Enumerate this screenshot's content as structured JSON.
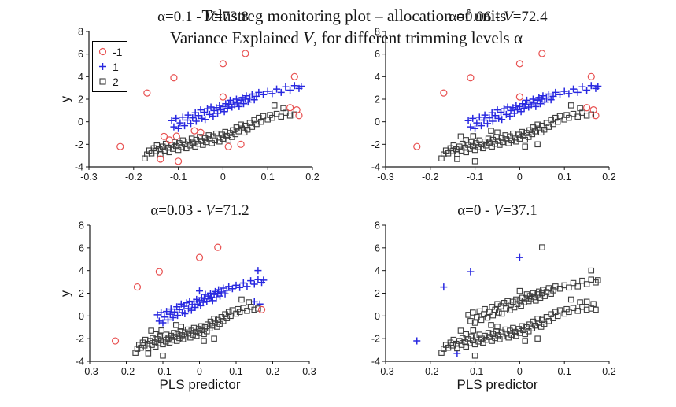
{
  "figure": {
    "title_line1": "Tclustreg monitoring plot – allocation of units",
    "title_line2_parts": [
      "Variance Explained ",
      "V",
      ", for different trimming levels α"
    ]
  },
  "colors": {
    "red": "#e85050",
    "blue": "#2828e0",
    "black": "#3c3c3c",
    "axis": "#1a1a1a"
  },
  "axes": {
    "ylabel": "y",
    "xlabel": "PLS predictor"
  },
  "legend": {
    "items": [
      {
        "label": "-1",
        "marker": "circle",
        "colorKey": "red"
      },
      {
        "label": "1",
        "marker": "plus",
        "colorKey": "blue"
      },
      {
        "label": "2",
        "marker": "square",
        "colorKey": "black"
      }
    ]
  },
  "chart_data": {
    "type": "scatter",
    "points": {
      "band1": [
        [
          -0.115,
          0.1
        ],
        [
          -0.11,
          -0.45
        ],
        [
          -0.105,
          0.3
        ],
        [
          -0.1,
          -0.6
        ],
        [
          -0.096,
          -0.1
        ],
        [
          -0.09,
          0.4
        ],
        [
          -0.086,
          -0.35
        ],
        [
          -0.08,
          0.15
        ],
        [
          -0.078,
          0.6
        ],
        [
          -0.072,
          -0.15
        ],
        [
          -0.068,
          0.35
        ],
        [
          -0.062,
          0.8
        ],
        [
          -0.06,
          0.05
        ],
        [
          -0.055,
          0.55
        ],
        [
          -0.05,
          1.05
        ],
        [
          -0.047,
          0.3
        ],
        [
          -0.042,
          0.85
        ],
        [
          -0.04,
          0.2
        ],
        [
          -0.035,
          1.15
        ],
        [
          -0.03,
          0.65
        ],
        [
          -0.027,
          1.3
        ],
        [
          -0.022,
          0.5
        ],
        [
          -0.02,
          1.0
        ],
        [
          -0.015,
          1.25
        ],
        [
          -0.012,
          0.75
        ],
        [
          -0.008,
          1.45
        ],
        [
          -0.005,
          1.05
        ],
        [
          0.0,
          1.35
        ],
        [
          0.003,
          0.9
        ],
        [
          0.006,
          1.6
        ],
        [
          0.01,
          1.2
        ],
        [
          0.013,
          1.55
        ],
        [
          0.016,
          1.9
        ],
        [
          0.02,
          1.3
        ],
        [
          0.023,
          1.75
        ],
        [
          0.026,
          1.5
        ],
        [
          0.03,
          2.0
        ],
        [
          0.032,
          1.65
        ],
        [
          0.036,
          1.35
        ],
        [
          0.04,
          1.9
        ],
        [
          0.043,
          2.15
        ],
        [
          0.046,
          1.6
        ],
        [
          0.05,
          2.0
        ],
        [
          0.052,
          2.3
        ],
        [
          0.056,
          1.75
        ],
        [
          0.06,
          2.1
        ],
        [
          0.065,
          2.45
        ],
        [
          0.07,
          1.95
        ],
        [
          0.075,
          2.25
        ],
        [
          0.08,
          2.6
        ],
        [
          0.09,
          2.4
        ],
        [
          0.1,
          2.7
        ],
        [
          0.11,
          2.5
        ],
        [
          0.12,
          2.9
        ],
        [
          0.13,
          2.6
        ],
        [
          0.14,
          3.1
        ],
        [
          0.15,
          2.8
        ],
        [
          0.16,
          3.2
        ],
        [
          0.17,
          2.95
        ],
        [
          0.175,
          3.15
        ]
      ],
      "band2": [
        [
          -0.175,
          -3.25
        ],
        [
          -0.17,
          -2.9
        ],
        [
          -0.165,
          -2.55
        ],
        [
          -0.16,
          -2.8
        ],
        [
          -0.155,
          -2.35
        ],
        [
          -0.15,
          -2.6
        ],
        [
          -0.148,
          -2.1
        ],
        [
          -0.142,
          -2.45
        ],
        [
          -0.14,
          -2.85
        ],
        [
          -0.135,
          -2.2
        ],
        [
          -0.13,
          -2.55
        ],
        [
          -0.128,
          -1.95
        ],
        [
          -0.122,
          -2.3
        ],
        [
          -0.12,
          -2.7
        ],
        [
          -0.115,
          -2.05
        ],
        [
          -0.112,
          -2.4
        ],
        [
          -0.108,
          -1.8
        ],
        [
          -0.105,
          -2.15
        ],
        [
          -0.1,
          -2.5
        ],
        [
          -0.098,
          -1.9
        ],
        [
          -0.092,
          -2.25
        ],
        [
          -0.09,
          -1.65
        ],
        [
          -0.085,
          -2.0
        ],
        [
          -0.082,
          -2.35
        ],
        [
          -0.078,
          -1.75
        ],
        [
          -0.075,
          -2.1
        ],
        [
          -0.07,
          -1.5
        ],
        [
          -0.068,
          -1.85
        ],
        [
          -0.062,
          -2.2
        ],
        [
          -0.06,
          -1.6
        ],
        [
          -0.055,
          -1.95
        ],
        [
          -0.052,
          -1.35
        ],
        [
          -0.048,
          -1.7
        ],
        [
          -0.045,
          -2.05
        ],
        [
          -0.04,
          -1.45
        ],
        [
          -0.038,
          -1.8
        ],
        [
          -0.032,
          -1.2
        ],
        [
          -0.03,
          -1.55
        ],
        [
          -0.025,
          -1.9
        ],
        [
          -0.022,
          -1.3
        ],
        [
          -0.018,
          -1.65
        ],
        [
          -0.015,
          -1.05
        ],
        [
          -0.01,
          -1.4
        ],
        [
          -0.008,
          -1.75
        ],
        [
          -0.002,
          -1.15
        ],
        [
          0.0,
          -1.5
        ],
        [
          0.005,
          -0.9
        ],
        [
          0.008,
          -1.25
        ],
        [
          0.012,
          -1.6
        ],
        [
          0.015,
          -1.0
        ],
        [
          0.02,
          -1.35
        ],
        [
          0.022,
          -0.75
        ],
        [
          0.028,
          -1.1
        ],
        [
          0.03,
          -0.5
        ],
        [
          0.035,
          -0.85
        ],
        [
          0.04,
          -0.25
        ],
        [
          0.042,
          -0.6
        ],
        [
          0.048,
          -0.95
        ],
        [
          0.05,
          -0.35
        ],
        [
          0.055,
          -0.7
        ],
        [
          0.06,
          -0.1
        ],
        [
          0.065,
          -0.45
        ],
        [
          0.07,
          0.15
        ],
        [
          0.075,
          -0.2
        ],
        [
          0.08,
          0.35
        ],
        [
          0.085,
          0.0
        ],
        [
          0.09,
          0.5
        ],
        [
          0.1,
          0.2
        ],
        [
          0.105,
          0.6
        ],
        [
          0.11,
          0.35
        ],
        [
          0.12,
          0.7
        ],
        [
          0.13,
          0.45
        ],
        [
          0.14,
          0.8
        ],
        [
          0.15,
          0.55
        ],
        [
          0.16,
          0.65
        ],
        [
          0.115,
          1.45
        ],
        [
          0.135,
          1.2
        ]
      ],
      "outliers": [
        [
          0.05,
          6.05
        ],
        [
          0.0,
          5.15
        ],
        [
          -0.11,
          3.9
        ],
        [
          0.16,
          4.0
        ],
        [
          -0.17,
          2.55
        ],
        [
          0.0,
          2.2
        ],
        [
          0.15,
          1.25
        ],
        [
          0.165,
          1.05
        ],
        [
          0.17,
          0.55
        ],
        [
          -0.23,
          -2.2
        ],
        [
          -0.14,
          -3.3
        ],
        [
          0.04,
          -2.0
        ]
      ],
      "border": [
        [
          -0.132,
          -1.3
        ],
        [
          -0.12,
          -1.62
        ],
        [
          -0.104,
          -1.28
        ],
        [
          -0.064,
          -0.8
        ],
        [
          -0.05,
          -0.95
        ],
        [
          0.012,
          -2.2
        ],
        [
          -0.1,
          -3.5
        ]
      ]
    },
    "panels": [
      {
        "title_parts": [
          "α=0.1 - ",
          "V",
          "=73.8"
        ],
        "xlim": [
          -0.3,
          0.2
        ],
        "ylim": [
          -4,
          8
        ],
        "xticks": [
          -0.3,
          -0.2,
          -0.1,
          0,
          0.1,
          0.2
        ],
        "yticks": [
          8,
          6,
          4,
          2,
          0,
          -2,
          -4
        ],
        "series": [
          {
            "name": "-1",
            "marker": "circle",
            "colorKey": "red",
            "refs": [
              {
                "set": "outliers",
                "idx": "all"
              },
              {
                "set": "border",
                "idx": "all"
              }
            ]
          },
          {
            "name": "1",
            "marker": "plus",
            "colorKey": "blue",
            "refs": [
              {
                "set": "band1",
                "idx": "all"
              }
            ]
          },
          {
            "name": "2",
            "marker": "square",
            "colorKey": "black",
            "refs": [
              {
                "set": "band2",
                "idx": "all"
              }
            ]
          }
        ]
      },
      {
        "title_parts": [
          "α=0.06 - ",
          "V",
          "=72.4"
        ],
        "xlim": [
          -0.3,
          0.2
        ],
        "ylim": [
          -4,
          8
        ],
        "xticks": [
          -0.3,
          -0.2,
          -0.1,
          0,
          0.1,
          0.2
        ],
        "yticks": [
          8,
          6,
          4,
          2,
          0,
          -2,
          -4
        ],
        "series": [
          {
            "name": "-1",
            "marker": "circle",
            "colorKey": "red",
            "refs": [
              {
                "set": "outliers",
                "idx": [
                  0,
                  1,
                  2,
                  3,
                  4,
                  5,
                  6,
                  7,
                  8,
                  9
                ]
              }
            ]
          },
          {
            "name": "1",
            "marker": "plus",
            "colorKey": "blue",
            "refs": [
              {
                "set": "band1",
                "idx": "all"
              }
            ]
          },
          {
            "name": "2",
            "marker": "square",
            "colorKey": "black",
            "refs": [
              {
                "set": "band2",
                "idx": "all"
              },
              {
                "set": "outliers",
                "idx": [
                  10,
                  11
                ]
              },
              {
                "set": "border",
                "idx": "all"
              }
            ]
          }
        ]
      },
      {
        "title_parts": [
          "α=0.03 - ",
          "V",
          "=71.2"
        ],
        "xlim": [
          -0.3,
          0.3
        ],
        "ylim": [
          -4,
          8
        ],
        "xticks": [
          -0.3,
          -0.2,
          -0.1,
          0,
          0.1,
          0.2,
          0.3
        ],
        "yticks": [
          8,
          6,
          4,
          2,
          0,
          -2,
          -4
        ],
        "series": [
          {
            "name": "-1",
            "marker": "circle",
            "colorKey": "red",
            "refs": [
              {
                "set": "outliers",
                "idx": [
                  0,
                  1,
                  2,
                  4,
                  8,
                  9
                ]
              }
            ]
          },
          {
            "name": "1",
            "marker": "plus",
            "colorKey": "blue",
            "refs": [
              {
                "set": "band1",
                "idx": "all"
              },
              {
                "set": "outliers",
                "idx": [
                  3,
                  5,
                  6,
                  7
                ]
              }
            ]
          },
          {
            "name": "2",
            "marker": "square",
            "colorKey": "black",
            "refs": [
              {
                "set": "band2",
                "idx": "all"
              },
              {
                "set": "outliers",
                "idx": [
                  10,
                  11
                ]
              },
              {
                "set": "border",
                "idx": "all"
              }
            ]
          }
        ]
      },
      {
        "title_parts": [
          "α=0 - ",
          "V",
          "=37.1"
        ],
        "xlim": [
          -0.3,
          0.2
        ],
        "ylim": [
          -4,
          8
        ],
        "xticks": [
          -0.3,
          -0.2,
          -0.1,
          0,
          0.1,
          0.2
        ],
        "yticks": [
          8,
          6,
          4,
          2,
          0,
          -2,
          -4
        ],
        "series": [
          {
            "name": "1",
            "marker": "plus",
            "colorKey": "blue",
            "refs": [
              {
                "set": "outliers",
                "idx": [
                  1,
                  2,
                  4,
                  9,
                  10
                ]
              }
            ]
          },
          {
            "name": "2",
            "marker": "square",
            "colorKey": "black",
            "refs": [
              {
                "set": "band1",
                "idx": "all"
              },
              {
                "set": "band2",
                "idx": "all"
              },
              {
                "set": "border",
                "idx": "all"
              },
              {
                "set": "outliers",
                "idx": [
                  0,
                  3,
                  5,
                  6,
                  7,
                  8,
                  11
                ]
              }
            ]
          }
        ]
      }
    ]
  }
}
